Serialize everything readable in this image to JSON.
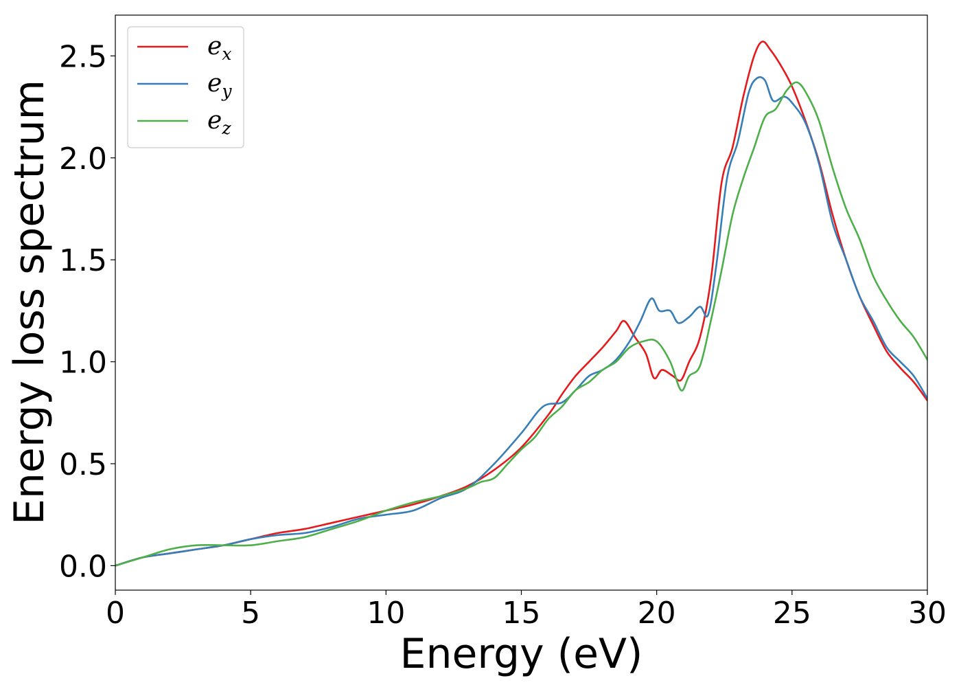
{
  "chart_data": {
    "type": "line",
    "title": "",
    "xlabel": "Energy (eV)",
    "ylabel": "Energy loss spectrum",
    "xlim": [
      0,
      30
    ],
    "ylim": [
      -0.12,
      2.7
    ],
    "xticks": [
      0,
      5,
      10,
      15,
      20,
      25,
      30
    ],
    "xtick_labels": [
      "0",
      "5",
      "10",
      "15",
      "20",
      "25",
      "30"
    ],
    "yticks": [
      0.0,
      0.5,
      1.0,
      1.5,
      2.0,
      2.5
    ],
    "ytick_labels": [
      "0.0",
      "0.5",
      "1.0",
      "1.5",
      "2.0",
      "2.5"
    ],
    "grid": false,
    "legend_position": "top-left",
    "series": [
      {
        "name": "e",
        "subscript": "x",
        "color": "#e41a1c",
        "x": [
          0,
          1,
          2,
          3,
          4,
          5,
          6,
          7,
          8,
          9,
          10,
          11,
          12,
          13,
          14,
          15,
          16,
          16.5,
          17,
          17.5,
          18,
          18.5,
          18.8,
          19.2,
          19.6,
          19.9,
          20.2,
          20.6,
          20.9,
          21.2,
          21.6,
          22,
          22.4,
          22.8,
          23.2,
          23.6,
          23.9,
          24.2,
          24.6,
          25,
          25.5,
          26,
          26.5,
          27,
          27.5,
          28,
          28.5,
          29,
          29.5,
          30
        ],
        "y": [
          0.0,
          0.04,
          0.06,
          0.08,
          0.1,
          0.13,
          0.16,
          0.18,
          0.21,
          0.24,
          0.27,
          0.3,
          0.34,
          0.39,
          0.47,
          0.58,
          0.74,
          0.84,
          0.93,
          1.0,
          1.07,
          1.15,
          1.2,
          1.12,
          1.04,
          0.92,
          0.96,
          0.93,
          0.91,
          1.0,
          1.12,
          1.4,
          1.88,
          2.05,
          2.3,
          2.5,
          2.57,
          2.53,
          2.45,
          2.35,
          2.18,
          1.98,
          1.72,
          1.5,
          1.32,
          1.18,
          1.05,
          0.97,
          0.9,
          0.81
        ]
      },
      {
        "name": "e",
        "subscript": "y",
        "color": "#377eb8",
        "x": [
          0,
          1,
          2,
          3,
          4,
          5,
          6,
          7,
          8,
          9,
          10,
          11,
          12,
          13,
          14,
          15,
          15.8,
          16.5,
          17,
          17.5,
          18,
          18.5,
          19,
          19.4,
          19.8,
          20.1,
          20.5,
          20.8,
          21.2,
          21.6,
          21.9,
          22.2,
          22.6,
          23,
          23.4,
          23.7,
          24,
          24.3,
          24.7,
          25,
          25.5,
          26,
          26.5,
          27,
          27.5,
          28,
          28.5,
          29,
          29.5,
          30
        ],
        "y": [
          0.0,
          0.04,
          0.06,
          0.08,
          0.1,
          0.13,
          0.15,
          0.16,
          0.19,
          0.23,
          0.25,
          0.27,
          0.33,
          0.38,
          0.5,
          0.65,
          0.78,
          0.8,
          0.86,
          0.93,
          0.96,
          1.01,
          1.1,
          1.2,
          1.31,
          1.25,
          1.25,
          1.19,
          1.22,
          1.27,
          1.23,
          1.47,
          1.9,
          2.08,
          2.32,
          2.39,
          2.38,
          2.28,
          2.3,
          2.27,
          2.17,
          1.97,
          1.68,
          1.5,
          1.32,
          1.2,
          1.07,
          1.0,
          0.93,
          0.82
        ]
      },
      {
        "name": "e",
        "subscript": "z",
        "color": "#4daf4a",
        "x": [
          0,
          1,
          2,
          3,
          4,
          5,
          6,
          7,
          8,
          9,
          10,
          11,
          12,
          13,
          13.5,
          14,
          14.5,
          15,
          15.5,
          16,
          16.5,
          17,
          17.5,
          18,
          18.5,
          19,
          19.5,
          20,
          20.5,
          20.9,
          21.2,
          21.6,
          22,
          22.4,
          22.8,
          23.2,
          23.6,
          24,
          24.4,
          24.8,
          25.2,
          25.6,
          26,
          26.5,
          27,
          27.5,
          28,
          28.5,
          29,
          29.5,
          30
        ],
        "y": [
          0.0,
          0.04,
          0.08,
          0.1,
          0.1,
          0.1,
          0.12,
          0.14,
          0.18,
          0.22,
          0.27,
          0.31,
          0.34,
          0.38,
          0.41,
          0.43,
          0.5,
          0.57,
          0.63,
          0.72,
          0.78,
          0.86,
          0.9,
          0.96,
          1.0,
          1.07,
          1.1,
          1.1,
          1.0,
          0.86,
          0.93,
          0.98,
          1.2,
          1.45,
          1.72,
          1.9,
          2.05,
          2.2,
          2.24,
          2.33,
          2.37,
          2.3,
          2.18,
          1.95,
          1.75,
          1.6,
          1.42,
          1.3,
          1.2,
          1.12,
          1.01
        ]
      }
    ]
  }
}
